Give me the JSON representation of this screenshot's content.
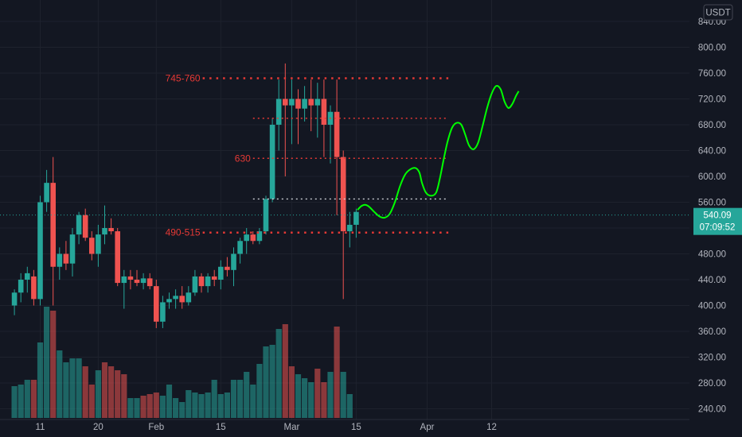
{
  "colors": {
    "background": "#131722",
    "grid": "#1e222d",
    "up": "#26a69a",
    "down": "#ef5350",
    "up_volume": "#26a69a",
    "down_volume": "#ef5350",
    "level_red": "#e53935",
    "level_white": "#cfd2d8",
    "projection": "#00ff00",
    "price_badge": "#26a69a"
  },
  "currency_badge": "USDT",
  "current_price": {
    "price": "540.09",
    "countdown": "07:09:52",
    "value": 540.09
  },
  "chart_data": {
    "type": "candlestick",
    "price_axis": {
      "min": 230,
      "max": 870,
      "ticks": [
        "240.00",
        "280.00",
        "320.00",
        "360.00",
        "400.00",
        "440.00",
        "480.00",
        "520.00",
        "560.00",
        "600.00",
        "640.00",
        "680.00",
        "720.00",
        "760.00",
        "800.00",
        "840.00"
      ],
      "tick_values": [
        240,
        280,
        320,
        360,
        400,
        440,
        480,
        520,
        560,
        600,
        640,
        680,
        720,
        760,
        800,
        840
      ],
      "position": "right"
    },
    "time_axis": {
      "labels": [
        "11",
        "20",
        "Feb",
        "15",
        "Mar",
        "15",
        "Apr",
        "12"
      ],
      "label_index": [
        1,
        10,
        19,
        29,
        40,
        50,
        61,
        71
      ],
      "index_range": [
        -3,
        74
      ]
    },
    "candles": [
      [
        -3,
        400,
        425,
        385,
        420
      ],
      [
        -2,
        420,
        450,
        405,
        440
      ],
      [
        -1,
        440,
        460,
        420,
        450
      ],
      [
        0,
        445,
        455,
        400,
        410
      ],
      [
        1,
        410,
        570,
        400,
        560
      ],
      [
        2,
        560,
        610,
        545,
        590
      ],
      [
        3,
        590,
        630,
        400,
        460
      ],
      [
        4,
        460,
        490,
        440,
        480
      ],
      [
        5,
        480,
        500,
        455,
        465
      ],
      [
        6,
        465,
        520,
        445,
        510
      ],
      [
        7,
        510,
        545,
        495,
        540
      ],
      [
        8,
        540,
        550,
        500,
        505
      ],
      [
        9,
        505,
        515,
        470,
        480
      ],
      [
        10,
        480,
        525,
        460,
        510
      ],
      [
        11,
        510,
        555,
        495,
        520
      ],
      [
        12,
        520,
        535,
        510,
        515
      ],
      [
        13,
        515,
        520,
        430,
        435
      ],
      [
        14,
        435,
        455,
        395,
        445
      ],
      [
        15,
        445,
        455,
        425,
        440
      ],
      [
        16,
        440,
        455,
        430,
        435
      ],
      [
        17,
        435,
        450,
        425,
        442
      ],
      [
        18,
        442,
        450,
        425,
        430
      ],
      [
        19,
        430,
        440,
        365,
        375
      ],
      [
        20,
        375,
        415,
        365,
        405
      ],
      [
        21,
        405,
        420,
        395,
        410
      ],
      [
        22,
        410,
        425,
        395,
        415
      ],
      [
        23,
        415,
        430,
        395,
        405
      ],
      [
        24,
        405,
        430,
        400,
        420
      ],
      [
        25,
        420,
        455,
        415,
        445
      ],
      [
        26,
        445,
        450,
        420,
        430
      ],
      [
        27,
        430,
        450,
        420,
        445
      ],
      [
        28,
        445,
        455,
        430,
        440
      ],
      [
        29,
        440,
        470,
        425,
        460
      ],
      [
        30,
        460,
        475,
        445,
        455
      ],
      [
        31,
        455,
        490,
        430,
        480
      ],
      [
        32,
        480,
        505,
        465,
        500
      ],
      [
        33,
        500,
        520,
        480,
        510
      ],
      [
        34,
        510,
        515,
        495,
        500
      ],
      [
        35,
        500,
        520,
        495,
        515
      ],
      [
        36,
        515,
        570,
        510,
        565
      ],
      [
        37,
        565,
        690,
        560,
        680
      ],
      [
        38,
        680,
        750,
        640,
        720
      ],
      [
        39,
        720,
        775,
        600,
        710
      ],
      [
        40,
        710,
        750,
        650,
        720
      ],
      [
        41,
        720,
        735,
        650,
        705
      ],
      [
        42,
        705,
        740,
        685,
        720
      ],
      [
        43,
        720,
        750,
        670,
        710
      ],
      [
        44,
        710,
        745,
        660,
        720
      ],
      [
        45,
        720,
        750,
        630,
        680
      ],
      [
        46,
        680,
        710,
        620,
        700
      ],
      [
        47,
        700,
        750,
        540,
        630
      ],
      [
        48,
        630,
        640,
        410,
        515
      ],
      [
        49,
        515,
        545,
        490,
        525
      ],
      [
        50,
        525,
        550,
        505,
        545
      ]
    ],
    "volumes": [
      [
        -3,
        40,
        1
      ],
      [
        -2,
        42,
        1
      ],
      [
        -1,
        48,
        1
      ],
      [
        0,
        48,
        0
      ],
      [
        1,
        95,
        1
      ],
      [
        2,
        140,
        1
      ],
      [
        3,
        135,
        0
      ],
      [
        4,
        85,
        1
      ],
      [
        5,
        70,
        1
      ],
      [
        6,
        75,
        1
      ],
      [
        7,
        75,
        1
      ],
      [
        8,
        65,
        0
      ],
      [
        9,
        42,
        0
      ],
      [
        10,
        60,
        1
      ],
      [
        11,
        70,
        0
      ],
      [
        12,
        65,
        0
      ],
      [
        13,
        60,
        0
      ],
      [
        14,
        55,
        0
      ],
      [
        15,
        25,
        1
      ],
      [
        16,
        25,
        1
      ],
      [
        17,
        28,
        0
      ],
      [
        18,
        30,
        0
      ],
      [
        19,
        32,
        0
      ],
      [
        20,
        28,
        1
      ],
      [
        21,
        42,
        1
      ],
      [
        22,
        25,
        1
      ],
      [
        23,
        20,
        1
      ],
      [
        24,
        35,
        1
      ],
      [
        25,
        32,
        1
      ],
      [
        26,
        30,
        1
      ],
      [
        27,
        32,
        1
      ],
      [
        28,
        48,
        1
      ],
      [
        29,
        30,
        1
      ],
      [
        30,
        32,
        1
      ],
      [
        31,
        48,
        1
      ],
      [
        32,
        48,
        1
      ],
      [
        33,
        58,
        1
      ],
      [
        34,
        42,
        1
      ],
      [
        35,
        68,
        1
      ],
      [
        36,
        90,
        1
      ],
      [
        37,
        92,
        1
      ],
      [
        38,
        112,
        1
      ],
      [
        39,
        118,
        0
      ],
      [
        40,
        65,
        0
      ],
      [
        41,
        55,
        1
      ],
      [
        42,
        50,
        1
      ],
      [
        43,
        45,
        1
      ],
      [
        44,
        62,
        0
      ],
      [
        45,
        45,
        0
      ],
      [
        46,
        58,
        1
      ],
      [
        47,
        115,
        0
      ],
      [
        48,
        58,
        1
      ],
      [
        49,
        30,
        1
      ]
    ],
    "levels": [
      {
        "label": "745-760",
        "price": 752,
        "style": "red",
        "from": 26.2,
        "to": 64.3
      },
      {
        "label": "",
        "price": 690,
        "style": "red",
        "from": 34.0,
        "to": 64.3
      },
      {
        "label": "630",
        "price": 628,
        "style": "red",
        "from": 34.0,
        "to": 64.3
      },
      {
        "label": "",
        "price": 565,
        "style": "white",
        "from": 34.0,
        "to": 64.3
      },
      {
        "label": "490-515",
        "price": 513,
        "style": "red",
        "from": 26.2,
        "to": 64.3
      }
    ],
    "projection": [
      [
        50.2,
        548
      ],
      [
        50.8,
        554
      ],
      [
        51.4,
        556
      ],
      [
        52.0,
        553
      ],
      [
        52.8,
        545
      ],
      [
        53.6,
        538
      ],
      [
        54.4,
        536
      ],
      [
        55.2,
        542
      ],
      [
        56.0,
        560
      ],
      [
        56.8,
        585
      ],
      [
        57.6,
        603
      ],
      [
        58.4,
        611
      ],
      [
        59.2,
        613
      ],
      [
        59.8,
        606
      ],
      [
        60.2,
        590
      ],
      [
        60.8,
        575
      ],
      [
        61.6,
        570
      ],
      [
        62.4,
        575
      ],
      [
        63.0,
        598
      ],
      [
        63.6,
        628
      ],
      [
        64.2,
        655
      ],
      [
        64.9,
        676
      ],
      [
        65.6,
        683
      ],
      [
        66.3,
        680
      ],
      [
        66.9,
        665
      ],
      [
        67.5,
        648
      ],
      [
        68.2,
        642
      ],
      [
        68.9,
        652
      ],
      [
        69.6,
        678
      ],
      [
        70.3,
        706
      ],
      [
        71.0,
        728
      ],
      [
        71.7,
        740
      ],
      [
        72.4,
        735
      ],
      [
        73.0,
        716
      ],
      [
        73.6,
        706
      ],
      [
        74.2,
        712
      ],
      [
        74.8,
        725
      ],
      [
        75.2,
        732
      ]
    ]
  }
}
